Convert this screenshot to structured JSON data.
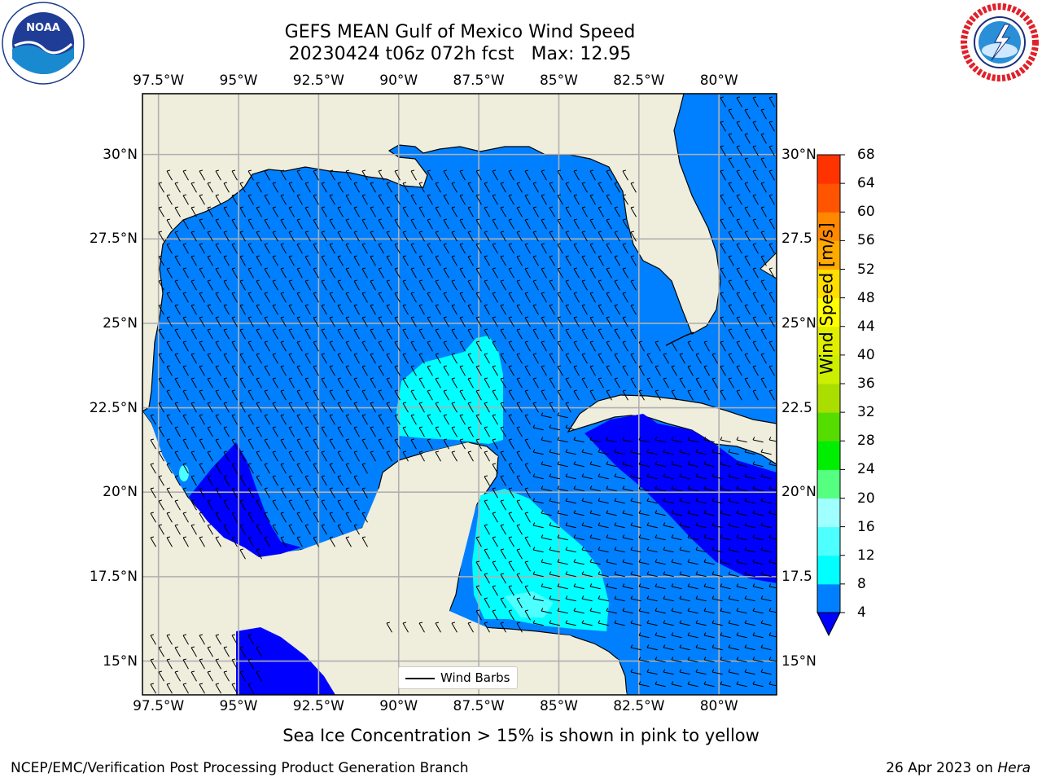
{
  "header": {
    "title_line1": "GEFS MEAN Gulf of Mexico Wind Speed",
    "title_line2": "20230424 t06z 072h fcst   Max: 12.95"
  },
  "logos": {
    "left": "noaa-logo",
    "left_text": "NOAA",
    "left_ring_text": "NATIONAL OCEANIC AND ATMOSPHERIC ADMINISTRATION · U.S. DEPARTMENT OF COMMERCE",
    "right": "nws-logo",
    "right_ring_text": "NATIONAL WEATHER SERVICE"
  },
  "map": {
    "lon_ticks": [
      "97.5°W",
      "95°W",
      "92.5°W",
      "90°W",
      "87.5°W",
      "85°W",
      "82.5°W",
      "80°W"
    ],
    "lat_ticks_left": [
      "30°N",
      "27.5°N",
      "25°N",
      "22.5°N",
      "20°N",
      "17.5°N",
      "15°N"
    ],
    "lat_ticks_right": [
      "30°N",
      "27.5",
      "25°N",
      "22.5",
      "20°N",
      "17.5",
      "15°N"
    ],
    "lon_range": [
      -98.0,
      -78.2
    ],
    "lat_range": [
      14.0,
      31.8
    ],
    "grid": true,
    "colors": {
      "land": "#efeddc",
      "wind_4_8": "#0080ff",
      "wind_8_12": "#00ffff",
      "wind_below_4": "#0000ff",
      "wind_12_16": "#4dffff"
    },
    "legend": {
      "label": "Wind Barbs",
      "position": "bottom-center"
    }
  },
  "colorbar": {
    "label": "Wind Speed [m/s]",
    "ticks": [
      "4",
      "8",
      "12",
      "16",
      "20",
      "24",
      "28",
      "32",
      "36",
      "40",
      "44",
      "48",
      "52",
      "56",
      "60",
      "64",
      "68"
    ],
    "colors": [
      "#0080ff",
      "#00ffff",
      "#4dffff",
      "#a0ffff",
      "#55ff80",
      "#00ee00",
      "#55dd00",
      "#aadd00",
      "#ccee00",
      "#e0ee00",
      "#ffff00",
      "#ffdd00",
      "#ffaa00",
      "#ff8800",
      "#ff5500",
      "#ff3300",
      "#ff0000"
    ],
    "extend_color": "#0000ff"
  },
  "footer": {
    "caption": "Sea Ice Concentration > 15% is shown in pink to yellow",
    "left": "NCEP/EMC/Verification Post Processing Product Generation Branch",
    "right_date": "26 Apr 2023 on ",
    "right_machine": "Hera"
  }
}
